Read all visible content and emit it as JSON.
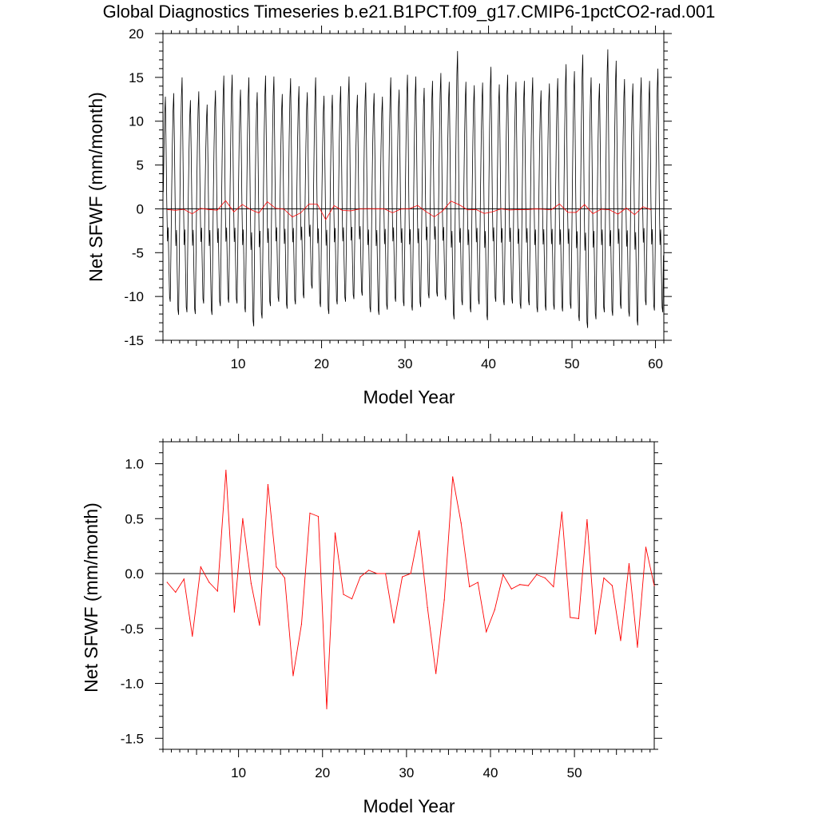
{
  "title": "Global Diagnostics Timeseries b.e21.B1PCT.f09_g17.CMIP6-1pctCO2-rad.001",
  "colors": {
    "monthly": "#000000",
    "annual": "#ff0000",
    "zero_line": "#000000"
  },
  "chart_data": [
    {
      "type": "line",
      "xlabel": "Model Year",
      "ylabel": "Net SFWF (mm/month)",
      "xlim": [
        1,
        61
      ],
      "ylim": [
        -15,
        20
      ],
      "xticks": [
        10,
        20,
        30,
        40,
        50,
        60
      ],
      "yticks": [
        -15,
        -10,
        -5,
        0,
        5,
        10,
        15,
        20
      ],
      "ytick_labels": [
        "-15",
        "-10",
        "-5",
        "0",
        "5",
        "10",
        "15",
        "20"
      ],
      "grid": false,
      "reference_line_y": 0,
      "monthly_peak_maxima": [
        12.8,
        13.2,
        15.0,
        12.4,
        13.4,
        11.9,
        13.5,
        15.2,
        15.3,
        13.6,
        15.0,
        13.3,
        15.2,
        15.1,
        13.1,
        14.9,
        14.0,
        13.3,
        15.0,
        12.9,
        13.0,
        14.0,
        15.1,
        13.0,
        14.4,
        13.2,
        12.8,
        15.0,
        13.6,
        15.3,
        15.1,
        13.8,
        14.6,
        15.5,
        14.5,
        18.0,
        14.5,
        14.1,
        14.4,
        16.2,
        14.2,
        15.3,
        14.5,
        14.6,
        15.0,
        13.5,
        14.3,
        14.9,
        16.5,
        15.7,
        17.6,
        15.0,
        14.3,
        18.2,
        16.9,
        14.8,
        14.3,
        15.0,
        14.6,
        16.0
      ],
      "monthly_trough_minima": [
        -10.6,
        -12.1,
        -11.8,
        -12.0,
        -10.8,
        -12.1,
        -11.1,
        -10.7,
        -10.8,
        -11.8,
        -13.4,
        -12.5,
        -11.1,
        -10.6,
        -11.4,
        -10.9,
        -10.2,
        -9.1,
        -11.2,
        -12.0,
        -10.9,
        -10.6,
        -10.3,
        -9.9,
        -11.8,
        -12.1,
        -11.5,
        -10.6,
        -11.1,
        -11.6,
        -11.2,
        -10.2,
        -10.0,
        -10.4,
        -12.6,
        -11.0,
        -11.8,
        -10.9,
        -12.7,
        -10.6,
        -11.0,
        -10.8,
        -11.4,
        -11.0,
        -11.8,
        -11.6,
        -11.5,
        -11.7,
        -11.4,
        -12.8,
        -13.6,
        -12.6,
        -11.8,
        -12.2,
        -11.4,
        -12.3,
        -13.3,
        -11.0,
        -11.6,
        -11.8
      ],
      "series": [
        {
          "role": "monthly",
          "color": "#000000"
        },
        {
          "role": "annual_mean",
          "color": "#ff0000"
        }
      ]
    },
    {
      "type": "line",
      "xlabel": "Model Year",
      "ylabel": "Net SFWF (mm/month)",
      "xlim": [
        1,
        59.5
      ],
      "ylim": [
        -1.6,
        1.2
      ],
      "xticks": [
        10,
        20,
        30,
        40,
        50
      ],
      "yticks": [
        -1.5,
        -1.0,
        -0.5,
        0.0,
        0.5,
        1.0
      ],
      "ytick_labels": [
        "-1.5",
        "-1.0",
        "-0.5",
        "0.0",
        "0.5",
        "1.0"
      ],
      "grid": false,
      "reference_line_y": 0,
      "series": [
        {
          "role": "annual_mean",
          "color": "#ff0000",
          "x": [
            1.5,
            2.5,
            3.5,
            4.5,
            5.5,
            6.5,
            7.5,
            8.5,
            9.5,
            10.5,
            11.5,
            12.5,
            13.5,
            14.5,
            15.5,
            16.5,
            17.5,
            18.5,
            19.5,
            20.5,
            21.5,
            22.5,
            23.5,
            24.5,
            25.5,
            26.5,
            27.5,
            28.5,
            29.5,
            30.5,
            31.5,
            32.5,
            33.5,
            34.5,
            35.5,
            36.5,
            37.5,
            38.5,
            39.5,
            40.5,
            41.5,
            42.5,
            43.5,
            44.5,
            45.5,
            46.5,
            47.5,
            48.5,
            49.5,
            50.5,
            51.5,
            52.5,
            53.5,
            54.5,
            55.5,
            56.5,
            57.5,
            58.5,
            59.5
          ],
          "y": [
            -0.08,
            -0.17,
            -0.05,
            -0.57,
            0.06,
            -0.08,
            -0.16,
            0.94,
            -0.35,
            0.5,
            -0.09,
            -0.47,
            0.81,
            0.06,
            -0.04,
            -0.93,
            -0.46,
            0.55,
            0.52,
            -1.23,
            0.37,
            -0.19,
            -0.23,
            -0.03,
            0.03,
            0.0,
            0.0,
            -0.45,
            -0.03,
            0.0,
            0.39,
            -0.31,
            -0.91,
            -0.24,
            0.88,
            0.46,
            -0.12,
            -0.08,
            -0.53,
            -0.33,
            -0.01,
            -0.14,
            -0.1,
            -0.11,
            -0.01,
            -0.04,
            -0.12,
            0.56,
            -0.4,
            -0.41,
            0.49,
            -0.55,
            -0.04,
            -0.11,
            -0.61,
            0.09,
            -0.67,
            0.24,
            -0.11
          ]
        }
      ]
    }
  ]
}
